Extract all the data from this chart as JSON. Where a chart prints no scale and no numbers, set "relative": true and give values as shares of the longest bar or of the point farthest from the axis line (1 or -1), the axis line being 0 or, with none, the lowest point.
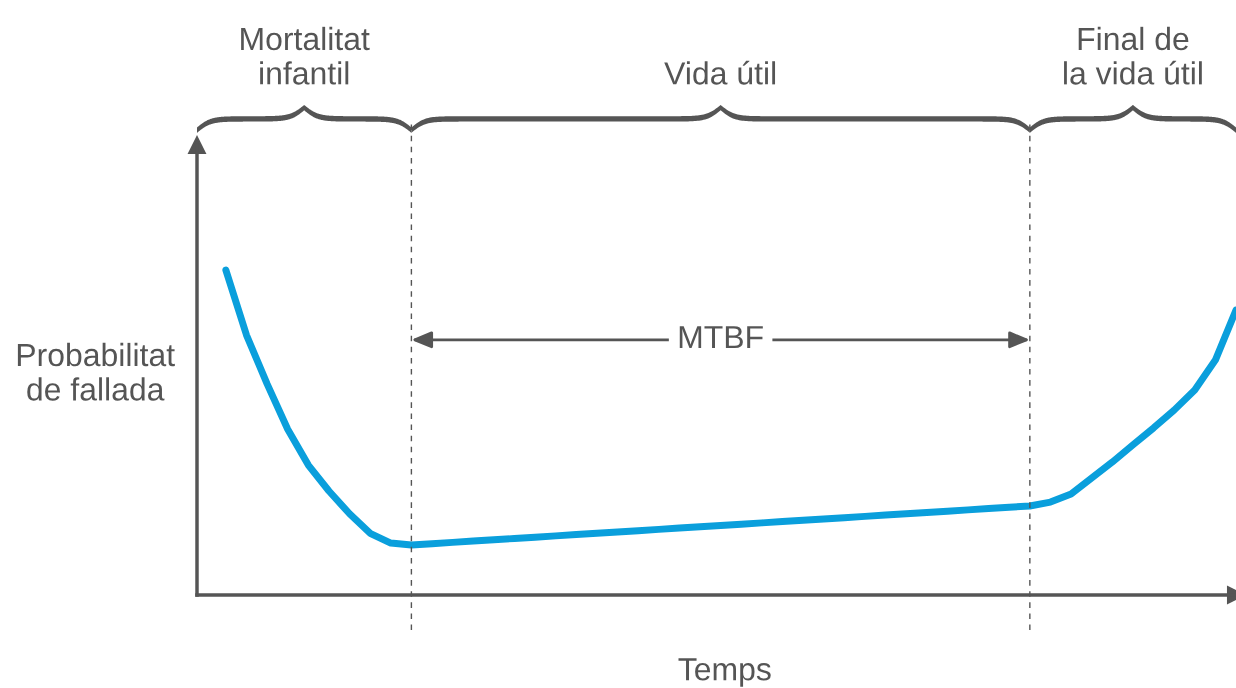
{
  "chart_data": {
    "type": "line",
    "xlabel": "Temps",
    "ylabel": "Probabilitat\nde fallada",
    "relative": true,
    "legend": false,
    "marker": "none",
    "line_style": "solid",
    "categories": [
      null,
      null,
      null,
      null,
      null,
      null,
      null,
      null,
      null,
      null,
      null,
      null,
      null,
      null,
      null,
      null,
      null,
      null,
      null,
      null,
      null,
      null,
      null,
      null,
      null,
      null,
      null,
      null,
      null,
      null,
      null,
      null,
      null,
      null,
      null,
      null,
      null,
      null,
      null,
      null,
      null,
      null,
      null,
      null,
      null,
      null,
      null,
      null,
      null,
      null
    ],
    "series": [
      {
        "color": "#0a9fdc",
        "values": [
          1.0,
          0.8,
          0.65,
          0.51,
          0.4,
          0.32,
          0.25,
          0.19,
          0.16,
          0.154,
          0.158,
          0.162,
          0.166,
          0.17,
          0.174,
          0.178,
          0.182,
          0.186,
          0.19,
          0.194,
          0.198,
          0.202,
          0.206,
          0.21,
          0.214,
          0.218,
          0.222,
          0.226,
          0.23,
          0.234,
          0.238,
          0.242,
          0.246,
          0.25,
          0.254,
          0.258,
          0.262,
          0.266,
          0.27,
          0.274,
          0.286,
          0.311,
          0.36,
          0.409,
          0.462,
          0.514,
          0.569,
          0.631,
          0.723,
          0.877
        ]
      }
    ],
    "annotations": [
      "Mortalitat\ninfantil",
      "Vida útil",
      "Final de\nla vida útil",
      "MTBF"
    ]
  }
}
